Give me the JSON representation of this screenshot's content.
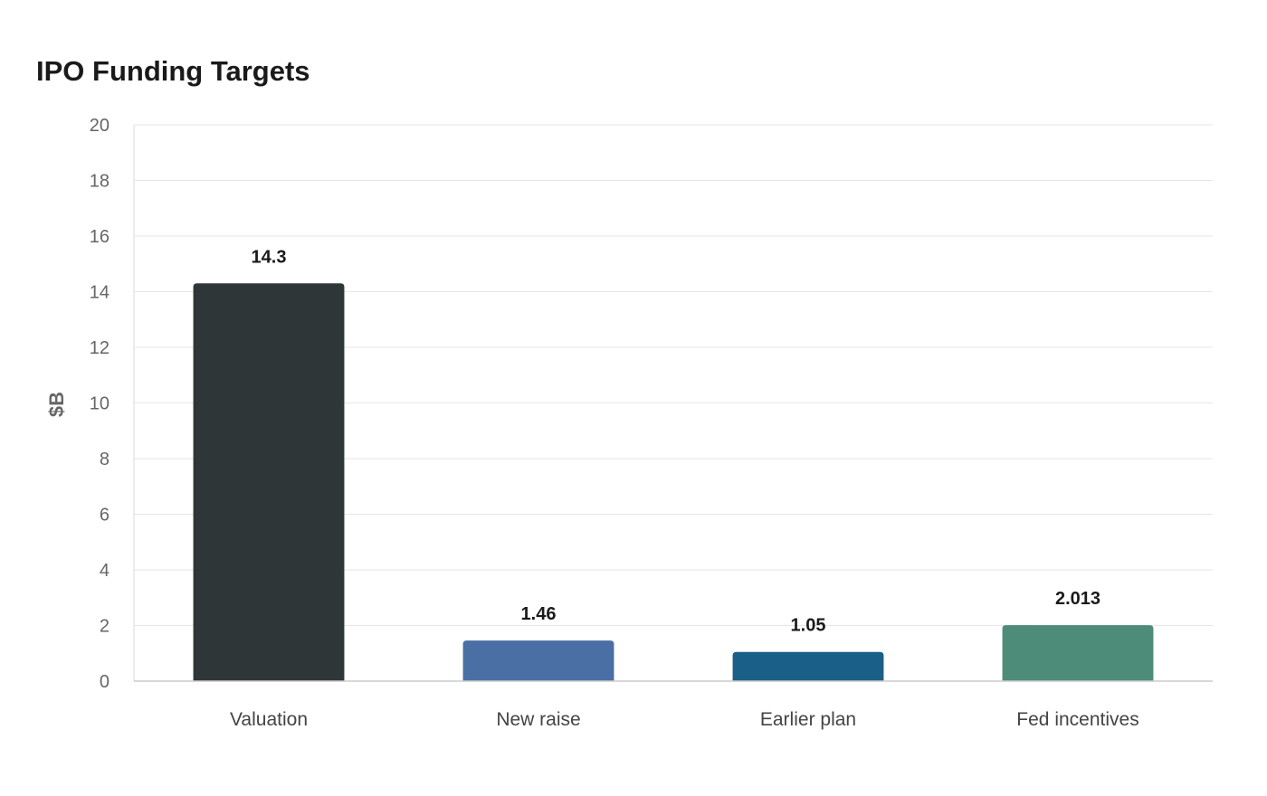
{
  "chart_data": {
    "type": "bar",
    "title": "IPO Funding Targets",
    "xlabel": "",
    "ylabel": "$B",
    "categories": [
      "Valuation",
      "New raise",
      "Earlier plan",
      "Fed incentives"
    ],
    "values": [
      14.3,
      1.46,
      1.05,
      2.013
    ],
    "value_labels": [
      "14.3",
      "1.46",
      "1.05",
      "2.013"
    ],
    "colors": [
      "#2e3638",
      "#4a6fa5",
      "#1a5f87",
      "#4e8c7a"
    ],
    "ylim": [
      0,
      20
    ],
    "yticks": [
      0,
      2,
      4,
      6,
      8,
      10,
      12,
      14,
      16,
      18,
      20
    ],
    "grid": true,
    "legend": "none"
  }
}
